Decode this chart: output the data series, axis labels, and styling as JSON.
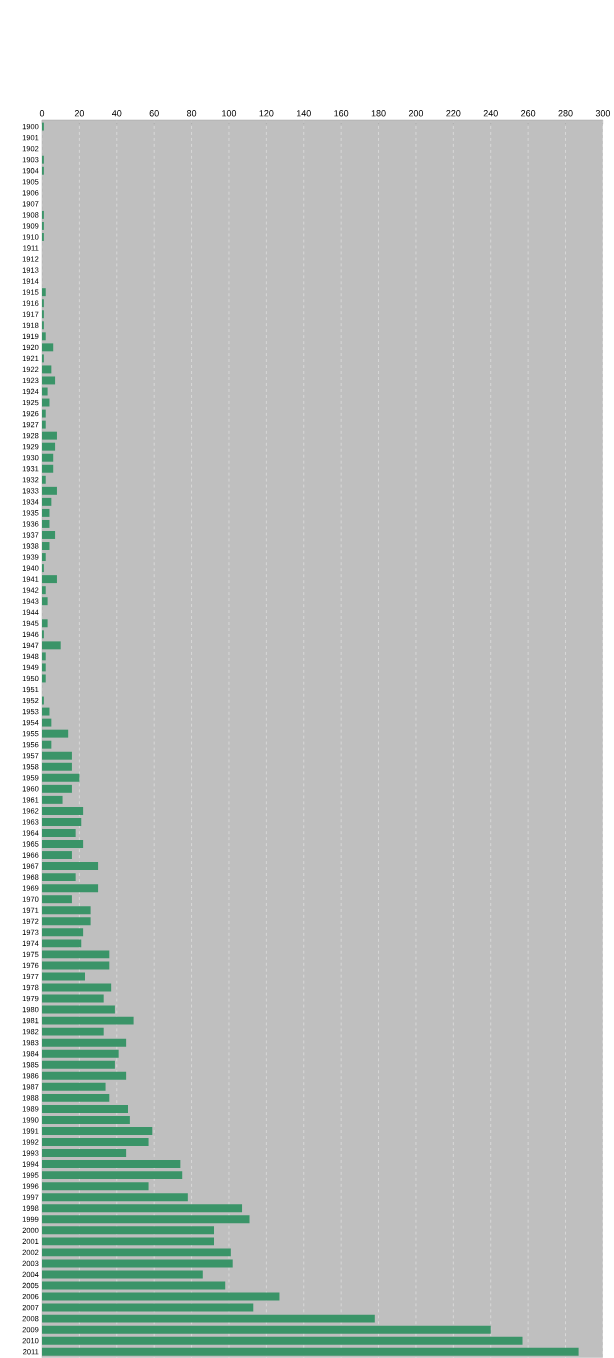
{
  "chart_data": {
    "type": "bar",
    "orientation": "horizontal",
    "categories": [
      "1900",
      "1901",
      "1902",
      "1903",
      "1904",
      "1905",
      "1906",
      "1907",
      "1908",
      "1909",
      "1910",
      "1911",
      "1912",
      "1913",
      "1914",
      "1915",
      "1916",
      "1917",
      "1918",
      "1919",
      "1920",
      "1921",
      "1922",
      "1923",
      "1924",
      "1925",
      "1926",
      "1927",
      "1928",
      "1929",
      "1930",
      "1931",
      "1932",
      "1933",
      "1934",
      "1935",
      "1936",
      "1937",
      "1938",
      "1939",
      "1940",
      "1941",
      "1942",
      "1943",
      "1944",
      "1945",
      "1946",
      "1947",
      "1948",
      "1949",
      "1950",
      "1951",
      "1952",
      "1953",
      "1954",
      "1955",
      "1956",
      "1957",
      "1958",
      "1959",
      "1960",
      "1961",
      "1962",
      "1963",
      "1964",
      "1965",
      "1966",
      "1967",
      "1968",
      "1969",
      "1970",
      "1971",
      "1972",
      "1973",
      "1974",
      "1975",
      "1976",
      "1977",
      "1978",
      "1979",
      "1980",
      "1981",
      "1982",
      "1983",
      "1984",
      "1985",
      "1986",
      "1987",
      "1988",
      "1989",
      "1990",
      "1991",
      "1992",
      "1993",
      "1994",
      "1995",
      "1996",
      "1997",
      "1998",
      "1999",
      "2000",
      "2001",
      "2002",
      "2003",
      "2004",
      "2005",
      "2006",
      "2007",
      "2008",
      "2009",
      "2010",
      "2011"
    ],
    "values": [
      1,
      0,
      0,
      1,
      1,
      0,
      0,
      0,
      1,
      1,
      1,
      0,
      0,
      0,
      0,
      2,
      1,
      1,
      1,
      2,
      6,
      1,
      5,
      7,
      3,
      4,
      2,
      2,
      8,
      7,
      6,
      6,
      2,
      8,
      5,
      4,
      4,
      7,
      4,
      2,
      1,
      8,
      2,
      3,
      0,
      3,
      1,
      10,
      2,
      2,
      2,
      0,
      1,
      4,
      5,
      14,
      5,
      16,
      16,
      20,
      16,
      11,
      22,
      21,
      18,
      22,
      16,
      30,
      18,
      30,
      16,
      26,
      26,
      22,
      21,
      36,
      36,
      23,
      37,
      33,
      39,
      49,
      33,
      45,
      41,
      39,
      45,
      34,
      36,
      46,
      47,
      59,
      57,
      45,
      74,
      75,
      57,
      78,
      107,
      111,
      92,
      92,
      101,
      102,
      86,
      98,
      127,
      113,
      178,
      240,
      257,
      287
    ],
    "color": "#3a9468",
    "xlim": [
      0,
      300
    ],
    "xticks": [
      0,
      20,
      40,
      60,
      80,
      100,
      120,
      140,
      160,
      180,
      200,
      220,
      240,
      260,
      280,
      300
    ],
    "grid": "x"
  }
}
